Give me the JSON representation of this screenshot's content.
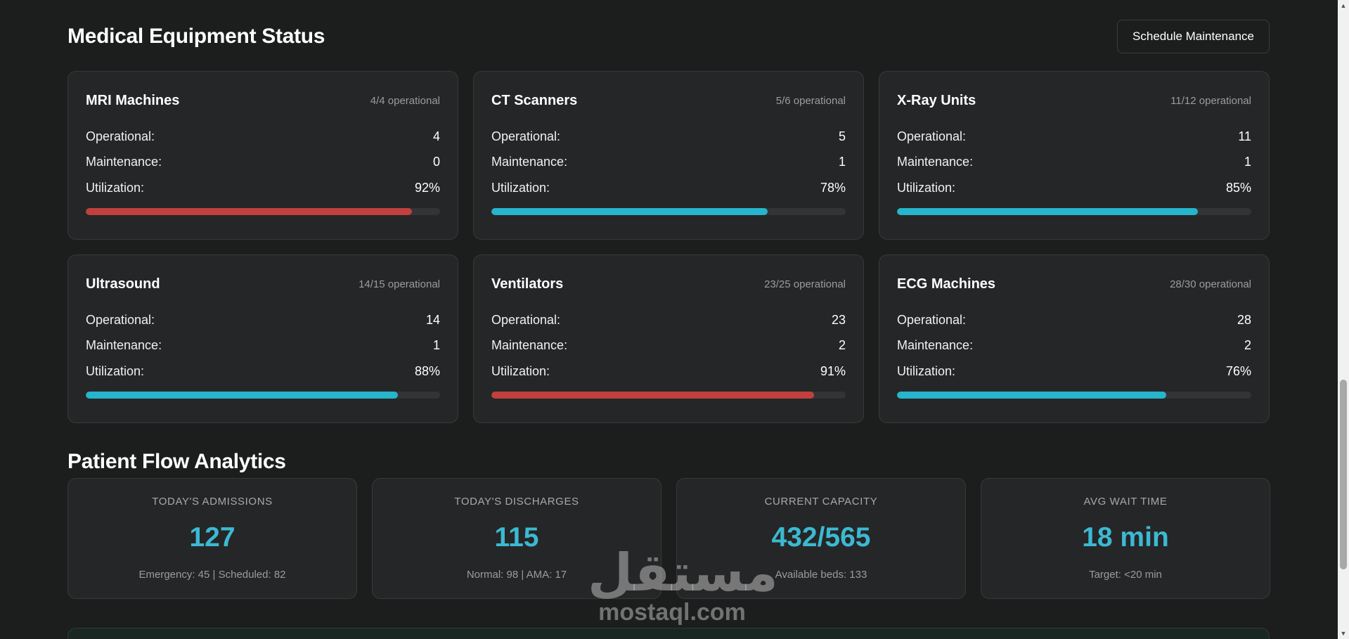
{
  "equipment_section": {
    "title": "Medical Equipment Status",
    "schedule_button": "Schedule Maintenance",
    "labels": {
      "operational": "Operational:",
      "maintenance": "Maintenance:",
      "utilization": "Utilization:"
    },
    "cards": [
      {
        "name": "MRI Machines",
        "status": "4/4 operational",
        "operational": "4",
        "maintenance": "0",
        "utilization": "92%",
        "utilization_fraction": 0.92,
        "bar_color": "#c0403e"
      },
      {
        "name": "CT Scanners",
        "status": "5/6 operational",
        "operational": "5",
        "maintenance": "1",
        "utilization": "78%",
        "utilization_fraction": 0.78,
        "bar_color": "#26b5cc"
      },
      {
        "name": "X-Ray Units",
        "status": "11/12 operational",
        "operational": "11",
        "maintenance": "1",
        "utilization": "85%",
        "utilization_fraction": 0.85,
        "bar_color": "#26b5cc"
      },
      {
        "name": "Ultrasound",
        "status": "14/15 operational",
        "operational": "14",
        "maintenance": "1",
        "utilization": "88%",
        "utilization_fraction": 0.88,
        "bar_color": "#26b5cc"
      },
      {
        "name": "Ventilators",
        "status": "23/25 operational",
        "operational": "23",
        "maintenance": "2",
        "utilization": "91%",
        "utilization_fraction": 0.91,
        "bar_color": "#c0403e"
      },
      {
        "name": "ECG Machines",
        "status": "28/30 operational",
        "operational": "28",
        "maintenance": "2",
        "utilization": "76%",
        "utilization_fraction": 0.76,
        "bar_color": "#26b5cc"
      }
    ]
  },
  "patient_flow": {
    "title": "Patient Flow Analytics",
    "stats": [
      {
        "label": "TODAY'S ADMISSIONS",
        "value": "127",
        "note": "Emergency: 45 | Scheduled: 82"
      },
      {
        "label": "TODAY'S DISCHARGES",
        "value": "115",
        "note": "Normal: 98 | AMA: 17"
      },
      {
        "label": "CURRENT CAPACITY",
        "value": "432/565",
        "note": "Available beds: 133"
      },
      {
        "label": "AVG WAIT TIME",
        "value": "18 min",
        "note": "Target: <20 min"
      }
    ]
  },
  "watermark": {
    "arabic": "مستقل",
    "latin": "mostaql.com"
  },
  "scrollbar": {
    "up_icon": "▲",
    "down_icon": "▼"
  },
  "colors": {
    "accent": "#3cb9d2",
    "warning": "#c0403e"
  }
}
